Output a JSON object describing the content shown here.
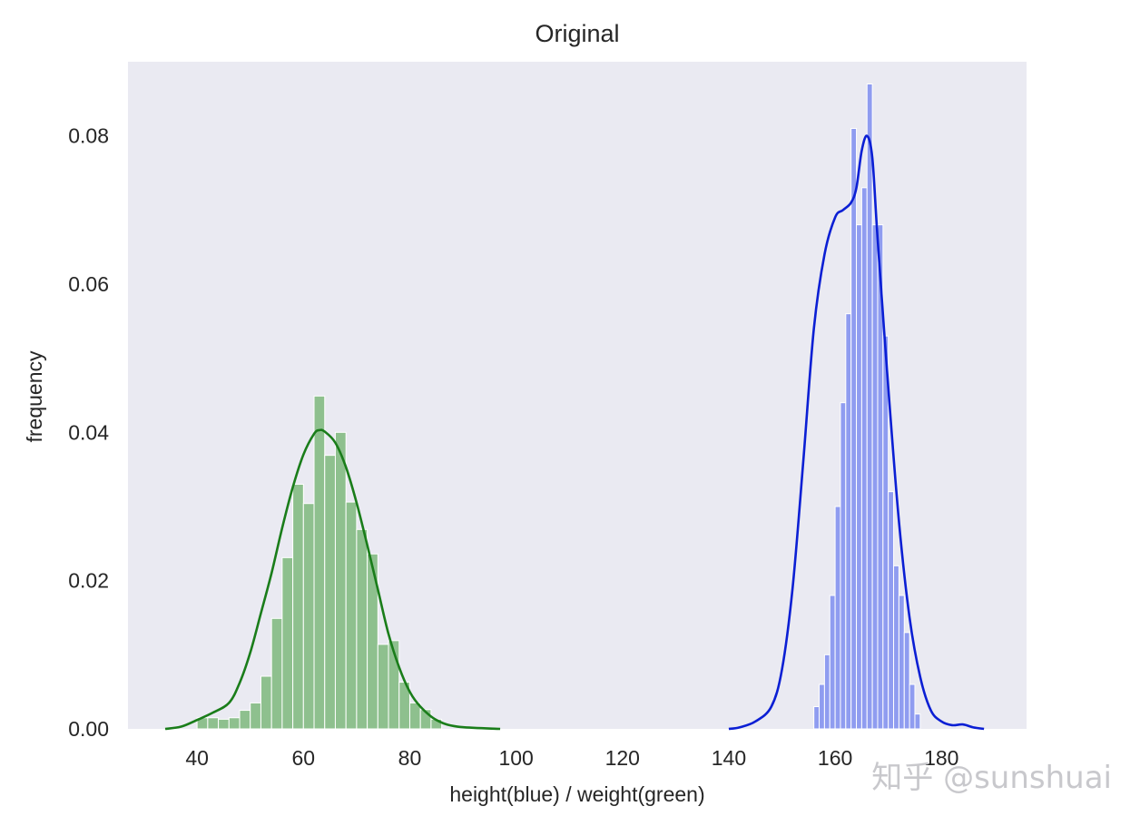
{
  "chart_data": {
    "type": "bar",
    "title": "Original",
    "xlabel": "height(blue) / weight(green)",
    "ylabel": "frequency",
    "xlim": [
      27,
      196
    ],
    "ylim": [
      0,
      0.09
    ],
    "grid": false,
    "background_color": "#eaeaf2",
    "x_ticks": [
      40,
      60,
      80,
      100,
      120,
      140,
      160,
      180
    ],
    "y_ticks": [
      "0.00",
      "0.02",
      "0.04",
      "0.06",
      "0.08"
    ],
    "series": [
      {
        "bar_color": "#8ec08e",
        "kde_color": "#1a7d1a",
        "bin_width": 2.0,
        "bins": [
          [
            41,
            0.0015
          ],
          [
            43,
            0.0015
          ],
          [
            45,
            0.0013
          ],
          [
            47,
            0.0015
          ],
          [
            49,
            0.0025
          ],
          [
            51,
            0.0035
          ],
          [
            53,
            0.0071
          ],
          [
            55,
            0.0149
          ],
          [
            57,
            0.0231
          ],
          [
            59,
            0.033
          ],
          [
            61,
            0.0304
          ],
          [
            63,
            0.0449
          ],
          [
            65,
            0.0369
          ],
          [
            67,
            0.04
          ],
          [
            69,
            0.0306
          ],
          [
            71,
            0.0269
          ],
          [
            73,
            0.0236
          ],
          [
            75,
            0.0114
          ],
          [
            77,
            0.0119
          ],
          [
            79,
            0.0063
          ],
          [
            81,
            0.0035
          ],
          [
            83,
            0.0026
          ],
          [
            85,
            0.0013
          ]
        ],
        "kde": [
          [
            34,
            0.0
          ],
          [
            37,
            0.0003
          ],
          [
            40,
            0.0012
          ],
          [
            43,
            0.0022
          ],
          [
            46,
            0.0035
          ],
          [
            48,
            0.0062
          ],
          [
            50,
            0.0103
          ],
          [
            52,
            0.0156
          ],
          [
            54,
            0.021
          ],
          [
            56,
            0.0271
          ],
          [
            58,
            0.0326
          ],
          [
            60,
            0.037
          ],
          [
            62,
            0.0398
          ],
          [
            63,
            0.0403
          ],
          [
            64,
            0.0401
          ],
          [
            66,
            0.0386
          ],
          [
            68,
            0.0353
          ],
          [
            70,
            0.0305
          ],
          [
            72,
            0.0248
          ],
          [
            74,
            0.0188
          ],
          [
            76,
            0.0128
          ],
          [
            78,
            0.0083
          ],
          [
            80,
            0.005
          ],
          [
            82,
            0.003
          ],
          [
            85,
            0.0012
          ],
          [
            89,
            0.0003
          ],
          [
            97,
            0.0
          ]
        ]
      },
      {
        "bar_color": "#8f9cf0",
        "kde_color": "#0b1fd4",
        "bin_width": 1.0,
        "bins": [
          [
            156.5,
            0.003
          ],
          [
            157.5,
            0.006
          ],
          [
            158.5,
            0.01
          ],
          [
            159.5,
            0.018
          ],
          [
            160.5,
            0.03
          ],
          [
            161.5,
            0.044
          ],
          [
            162.5,
            0.056
          ],
          [
            163.5,
            0.081
          ],
          [
            164.5,
            0.068
          ],
          [
            165.5,
            0.073
          ],
          [
            166.5,
            0.087
          ],
          [
            167.5,
            0.068
          ],
          [
            168.5,
            0.068
          ],
          [
            169.5,
            0.053
          ],
          [
            170.5,
            0.032
          ],
          [
            171.5,
            0.022
          ],
          [
            172.5,
            0.018
          ],
          [
            173.5,
            0.013
          ],
          [
            174.5,
            0.006
          ],
          [
            175.5,
            0.002
          ]
        ],
        "kde": [
          [
            140,
            0.0
          ],
          [
            142,
            0.0002
          ],
          [
            145,
            0.001
          ],
          [
            148,
            0.003
          ],
          [
            150,
            0.008
          ],
          [
            152,
            0.019
          ],
          [
            154,
            0.036
          ],
          [
            156,
            0.054
          ],
          [
            158,
            0.064
          ],
          [
            160,
            0.069
          ],
          [
            161.5,
            0.07
          ],
          [
            163,
            0.071
          ],
          [
            164,
            0.073
          ],
          [
            165,
            0.078
          ],
          [
            166,
            0.08
          ],
          [
            167,
            0.077
          ],
          [
            168,
            0.066
          ],
          [
            170,
            0.046
          ],
          [
            172,
            0.028
          ],
          [
            174,
            0.015
          ],
          [
            176,
            0.007
          ],
          [
            178,
            0.0025
          ],
          [
            180,
            0.001
          ],
          [
            182,
            0.0005
          ],
          [
            184,
            0.0006
          ],
          [
            186,
            0.0002
          ],
          [
            188,
            0.0
          ]
        ]
      }
    ]
  },
  "watermark": "知乎 @sunshuai"
}
